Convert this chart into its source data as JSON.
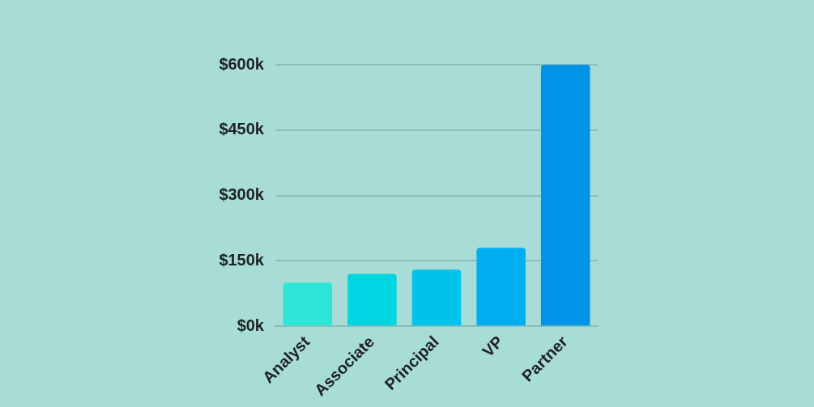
{
  "chart_data": {
    "type": "bar",
    "categories": [
      "Analyst",
      "Associate",
      "Principal",
      "VP",
      "Partner"
    ],
    "values": [
      100,
      120,
      130,
      180,
      600
    ],
    "colors": [
      "#2ee6d8",
      "#00d6e2",
      "#00c3ec",
      "#00aef2",
      "#0094e8"
    ],
    "ylim": [
      0,
      600
    ],
    "yticks": [
      {
        "value": 0,
        "label": "$0k"
      },
      {
        "value": 150,
        "label": "$150k"
      },
      {
        "value": 300,
        "label": "$300k"
      },
      {
        "value": 450,
        "label": "$450k"
      },
      {
        "value": 600,
        "label": "$600k"
      }
    ],
    "grid": "y",
    "legend": false
  }
}
